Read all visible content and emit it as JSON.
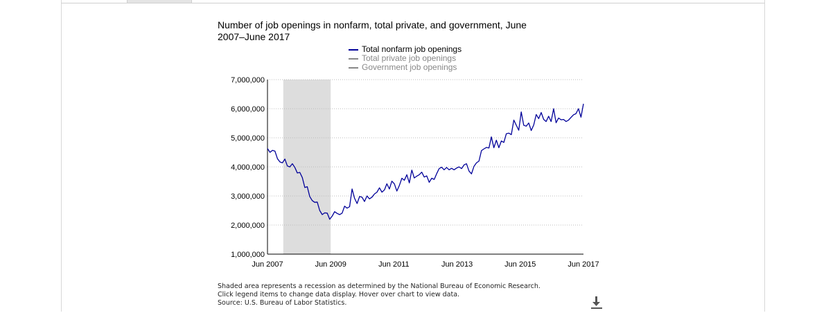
{
  "chart_data": {
    "type": "line",
    "title": "Number of job openings in nonfarm, total private, and government, June 2007–June 2017",
    "x_start": "Jun 2007",
    "x_end": "Jun 2017",
    "ylim": [
      1000000,
      7000000
    ],
    "y_ticks": [
      "1,000,000",
      "2,000,000",
      "3,000,000",
      "4,000,000",
      "5,000,000",
      "6,000,000",
      "7,000,000"
    ],
    "x_ticks": [
      "Jun 2007",
      "Jun 2009",
      "Jun 2011",
      "Jun 2013",
      "Jun 2015",
      "Jun 2017"
    ],
    "grid": "horizontal dotted",
    "shaded_period": [
      "Dec 2007",
      "Jun 2009"
    ],
    "legend_position": "top",
    "series": [
      {
        "name": "Total nonfarm job openings",
        "color": "#000099",
        "visible": true,
        "values": [
          4630000,
          4500000,
          4570000,
          4540000,
          4280000,
          4170000,
          4140000,
          4270000,
          4030000,
          4000000,
          4110000,
          3980000,
          3790000,
          3810000,
          3630000,
          3290000,
          3320000,
          2980000,
          2840000,
          2780000,
          2790000,
          2500000,
          2360000,
          2420000,
          2410000,
          2200000,
          2310000,
          2460000,
          2400000,
          2360000,
          2410000,
          2650000,
          2580000,
          2630000,
          3240000,
          2920000,
          2740000,
          2980000,
          2960000,
          2810000,
          3000000,
          2900000,
          2960000,
          3070000,
          3130000,
          3280000,
          3130000,
          3210000,
          3420000,
          3240000,
          3510000,
          3420000,
          3170000,
          3360000,
          3610000,
          3540000,
          3730000,
          3450000,
          3890000,
          3620000,
          3680000,
          3730000,
          3820000,
          3650000,
          3690000,
          3470000,
          3610000,
          3570000,
          3770000,
          3940000,
          3990000,
          3900000,
          3980000,
          3900000,
          3950000,
          3900000,
          3960000,
          4000000,
          3940000,
          4070000,
          4110000,
          3860000,
          3760000,
          4020000,
          4140000,
          4200000,
          4560000,
          4620000,
          4670000,
          4650000,
          5030000,
          4660000,
          4920000,
          4660000,
          4890000,
          4840000,
          5140000,
          5160000,
          5110000,
          5610000,
          5430000,
          5260000,
          5890000,
          5430000,
          5400000,
          5510000,
          5250000,
          5440000,
          5800000,
          5660000,
          5870000,
          5630000,
          5560000,
          5740000,
          5560000,
          6000000,
          5520000,
          5680000,
          5620000,
          5630000,
          5560000,
          5610000,
          5700000,
          5790000,
          5830000,
          6000000,
          5710000,
          6170000
        ]
      },
      {
        "name": "Total private job openings",
        "color": "#888888",
        "visible": false,
        "values": []
      },
      {
        "name": "Government job openings",
        "color": "#888888",
        "visible": false,
        "values": []
      }
    ]
  },
  "footnote": {
    "line1": "Shaded area represents a recession as determined by the National Bureau of Economic Research.",
    "line2": "Click legend items to change data display. Hover over chart to view data.",
    "line3": "Source: U.S. Bureau of Labor Statistics."
  },
  "icons": {
    "download": "download-icon"
  }
}
